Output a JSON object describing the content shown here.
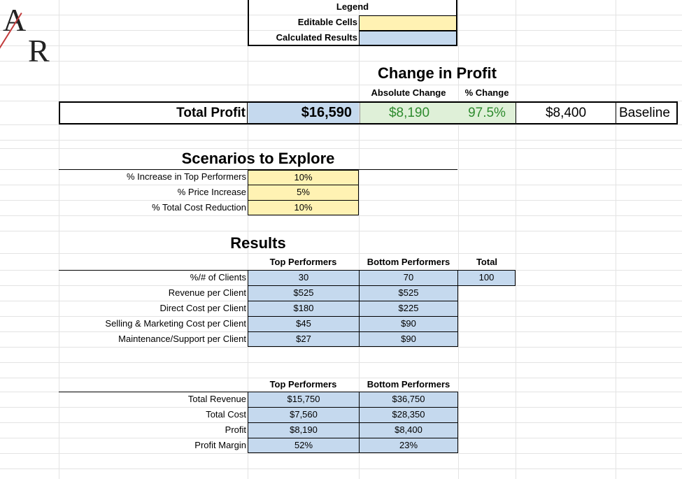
{
  "logo": {
    "letters": "A/R",
    "letter_top": "A",
    "letter_bottom": "R"
  },
  "legend": {
    "title": "Legend",
    "editable_label": "Editable Cells",
    "calculated_label": "Calculated Results",
    "editable_color": "#fff2b3",
    "calculated_color": "#c5d9ee"
  },
  "change_in_profit": {
    "title": "Change in Profit",
    "absolute_header": "Absolute Change",
    "percent_header": "% Change"
  },
  "total_profit": {
    "label": "Total Profit",
    "value": "$16,590",
    "absolute_change": "$8,190",
    "percent_change": "97.5%",
    "baseline_value": "$8,400",
    "baseline_label": "Baseline"
  },
  "scenarios": {
    "title": "Scenarios to Explore",
    "rows": [
      {
        "label": "% Increase in Top Performers",
        "value": "10%"
      },
      {
        "label": "% Price Increase",
        "value": "5%"
      },
      {
        "label": "% Total Cost Reduction",
        "value": "10%"
      }
    ]
  },
  "results": {
    "title": "Results",
    "headers": {
      "top": "Top Performers",
      "bottom": "Bottom Performers",
      "total": "Total"
    },
    "rows": [
      {
        "label": "%/# of Clients",
        "top": "30",
        "bottom": "70",
        "total": "100"
      },
      {
        "label": "Revenue per Client",
        "top": "$525",
        "bottom": "$525"
      },
      {
        "label": "Direct Cost per Client",
        "top": "$180",
        "bottom": "$225"
      },
      {
        "label": "Selling & Marketing Cost per Client",
        "top": "$45",
        "bottom": "$90"
      },
      {
        "label": "Maintenance/Support per Client",
        "top": "$27",
        "bottom": "$90"
      }
    ]
  },
  "summary": {
    "headers": {
      "top": "Top Performers",
      "bottom": "Bottom Performers"
    },
    "rows": [
      {
        "label": "Total Revenue",
        "top": "$15,750",
        "bottom": "$36,750"
      },
      {
        "label": "Total Cost",
        "top": "$7,560",
        "bottom": "$28,350"
      },
      {
        "label": "Profit",
        "top": "$8,190",
        "bottom": "$8,400"
      },
      {
        "label": "Profit Margin",
        "top": "52%",
        "bottom": "23%"
      }
    ]
  }
}
